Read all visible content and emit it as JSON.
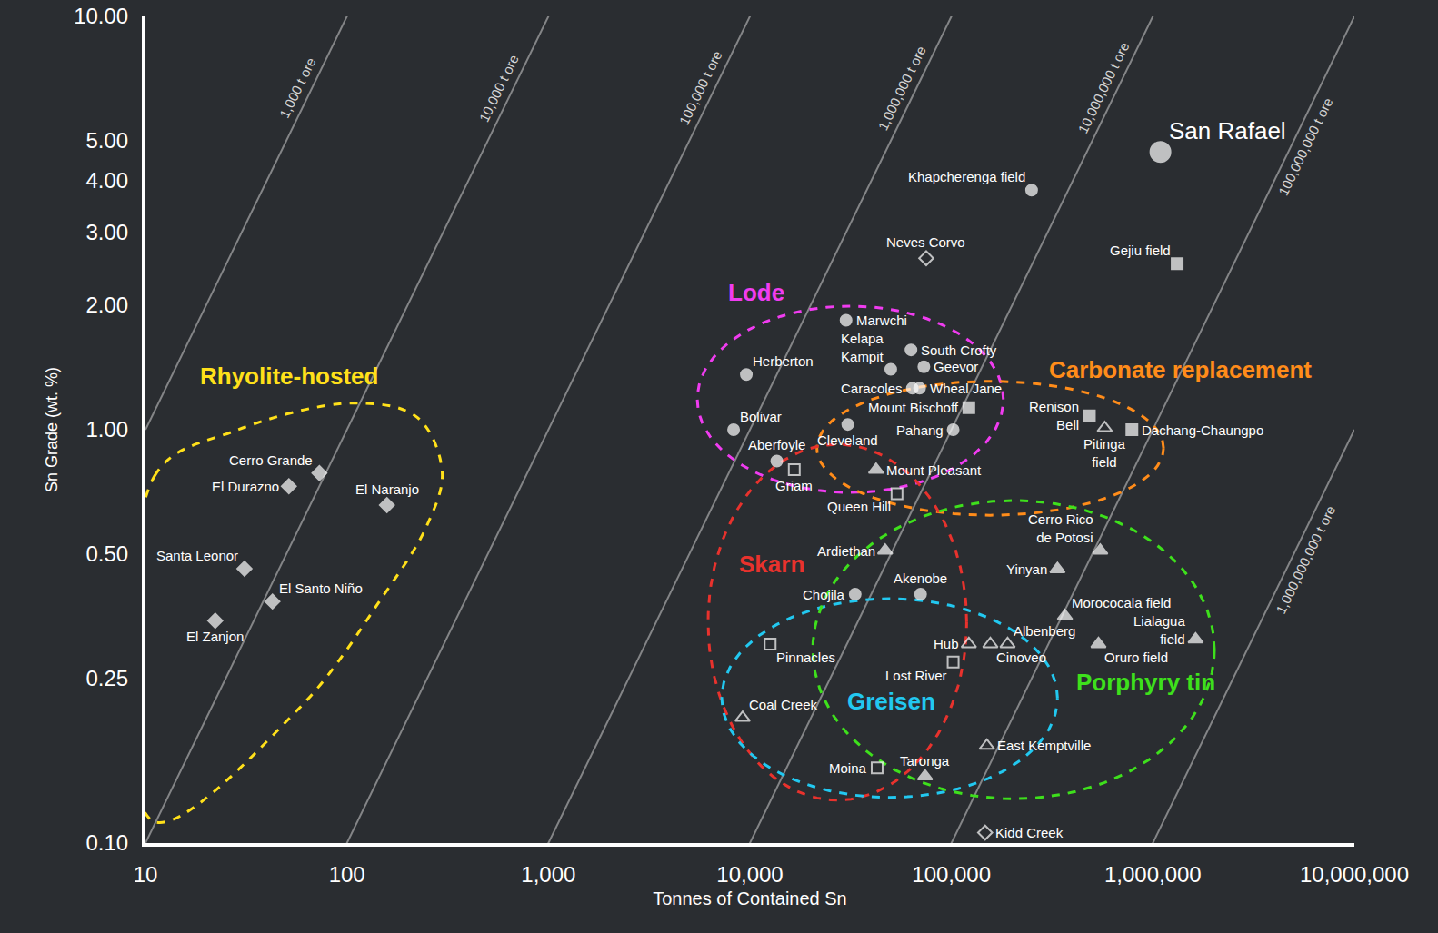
{
  "chart_data": {
    "type": "scatter",
    "xlabel": "Tonnes of Contained Sn",
    "ylabel": "Sn Grade (wt. %)",
    "log": true,
    "grid": false,
    "xlim": [
      10,
      10000000
    ],
    "ylim": [
      0.1,
      10
    ],
    "xticks": [
      10,
      100,
      {
        "value": 1000,
        "label": "1,000"
      },
      {
        "value": 10000,
        "label": "10,000"
      },
      {
        "value": 100000,
        "label": "100,000"
      },
      {
        "value": 1000000,
        "label": "1,000,000"
      },
      {
        "value": 10000000,
        "label": "10,000,000"
      }
    ],
    "yticks": [
      {
        "value": 0.1,
        "label": "0.10"
      },
      0.25,
      {
        "value": 0.5,
        "label": "0.50"
      },
      {
        "value": 1,
        "label": "1.00"
      },
      {
        "value": 2,
        "label": "2.00"
      },
      {
        "value": 3,
        "label": "3.00"
      },
      {
        "value": 4,
        "label": "4.00"
      },
      {
        "value": 5,
        "label": "5.00"
      },
      {
        "value": 10,
        "label": "10.00"
      }
    ],
    "ore_lines": [
      {
        "value": 1000,
        "label": "1,000 t ore"
      },
      {
        "value": 10000,
        "label": "10,000 t ore"
      },
      {
        "value": 100000,
        "label": "100,000 t ore"
      },
      {
        "value": 1000000,
        "label": "1,000,000 t ore"
      },
      {
        "value": 10000000,
        "label": "10,000,000 t ore"
      },
      {
        "value": 100000000,
        "label": "100,000,000 t ore"
      },
      {
        "value": 1000000000,
        "label": "1,000,000,000 t ore"
      }
    ],
    "points": [
      {
        "name": "San Rafael",
        "x": 1090000,
        "y": 4.7,
        "marker": "circle-large"
      },
      {
        "name": "Khapcherenga field",
        "x": 250000,
        "y": 3.8,
        "marker": "circle"
      },
      {
        "name": "Neves Corvo",
        "x": 75000,
        "y": 2.6,
        "marker": "diamond-open"
      },
      {
        "name": "Gejiu field",
        "x": 1320000,
        "y": 2.52,
        "marker": "square"
      },
      {
        "name": "Marwchi",
        "x": 30000,
        "y": 1.84,
        "marker": "circle"
      },
      {
        "name": "South Crofty",
        "x": 63000,
        "y": 1.56,
        "marker": "circle"
      },
      {
        "name": "Kelapa Kampit",
        "x": 50000,
        "y": 1.4,
        "marker": "circle"
      },
      {
        "name": "Geevor",
        "x": 73000,
        "y": 1.42,
        "marker": "circle"
      },
      {
        "name": "Caracoles",
        "x": 64000,
        "y": 1.26,
        "marker": "circle"
      },
      {
        "name": "Wheal Jane",
        "x": 69500,
        "y": 1.26,
        "marker": "circle"
      },
      {
        "name": "Herberton",
        "x": 9600,
        "y": 1.36,
        "marker": "circle"
      },
      {
        "name": "Bolivar",
        "x": 8300,
        "y": 1.0,
        "marker": "circle"
      },
      {
        "name": "Mount Bischoff",
        "x": 122000,
        "y": 1.13,
        "marker": "square"
      },
      {
        "name": "Pahang",
        "x": 102000,
        "y": 1.0,
        "marker": "circle"
      },
      {
        "name": "Cleveland",
        "x": 30600,
        "y": 1.03,
        "marker": "circle"
      },
      {
        "name": "Renison Bell",
        "x": 484000,
        "y": 1.08,
        "marker": "square"
      },
      {
        "name": "Pitinga field",
        "x": 577000,
        "y": 1.01,
        "marker": "triangle-open"
      },
      {
        "name": "Dachang-Chaungpo",
        "x": 787000,
        "y": 1.0,
        "marker": "square"
      },
      {
        "name": "Aberfoyle",
        "x": 13600,
        "y": 0.84,
        "marker": "circle"
      },
      {
        "name": "Griam",
        "x": 16600,
        "y": 0.8,
        "marker": "square-open"
      },
      {
        "name": "Mount Pleasant",
        "x": 42300,
        "y": 0.8,
        "marker": "triangle"
      },
      {
        "name": "Queen Hill",
        "x": 53700,
        "y": 0.7,
        "marker": "square-open"
      },
      {
        "name": "Ardiethan",
        "x": 46900,
        "y": 0.51,
        "marker": "triangle"
      },
      {
        "name": "Cerro Rico de Potosi",
        "x": 548000,
        "y": 0.51,
        "marker": "triangle"
      },
      {
        "name": "Yinyan",
        "x": 336000,
        "y": 0.46,
        "marker": "triangle"
      },
      {
        "name": "Chojila",
        "x": 33300,
        "y": 0.4,
        "marker": "circle"
      },
      {
        "name": "Akenobe",
        "x": 70300,
        "y": 0.4,
        "marker": "circle"
      },
      {
        "name": "Morococala field",
        "x": 366000,
        "y": 0.354,
        "marker": "triangle"
      },
      {
        "name": "Hub",
        "x": 122000,
        "y": 0.303,
        "marker": "triangle-open"
      },
      {
        "name": "Cinoveo",
        "x": 156000,
        "y": 0.303,
        "marker": "triangle-open"
      },
      {
        "name": "Albenberg",
        "x": 190000,
        "y": 0.303,
        "marker": "triangle-open"
      },
      {
        "name": "Lialagua field",
        "x": 1630000,
        "y": 0.311,
        "marker": "triangle"
      },
      {
        "name": "Oruro field",
        "x": 537000,
        "y": 0.303,
        "marker": "triangle"
      },
      {
        "name": "Pinnacles",
        "x": 12600,
        "y": 0.303,
        "marker": "square-open"
      },
      {
        "name": "Lost River",
        "x": 102000,
        "y": 0.274,
        "marker": "square-open"
      },
      {
        "name": "Coal Creek",
        "x": 9200,
        "y": 0.201,
        "marker": "triangle-open"
      },
      {
        "name": "East Kemptville",
        "x": 150000,
        "y": 0.172,
        "marker": "triangle-open"
      },
      {
        "name": "Moina",
        "x": 42800,
        "y": 0.152,
        "marker": "square-open"
      },
      {
        "name": "Taronga",
        "x": 74000,
        "y": 0.145,
        "marker": "triangle"
      },
      {
        "name": "Kidd Creek",
        "x": 147000,
        "y": 0.106,
        "marker": "diamond-open"
      },
      {
        "name": "Cerro Grande",
        "x": 73,
        "y": 0.785,
        "marker": "diamond"
      },
      {
        "name": "El Durazno",
        "x": 51.5,
        "y": 0.73,
        "marker": "diamond"
      },
      {
        "name": "El Naranjo",
        "x": 158,
        "y": 0.657,
        "marker": "diamond"
      },
      {
        "name": "Santa Leonor",
        "x": 31,
        "y": 0.461,
        "marker": "diamond"
      },
      {
        "name": "El Santo Niño",
        "x": 42.7,
        "y": 0.384,
        "marker": "diamond"
      },
      {
        "name": "El Zanjon",
        "x": 22.2,
        "y": 0.345,
        "marker": "diamond"
      }
    ],
    "groups": [
      {
        "name": "Lode",
        "color": "#f03cf0",
        "xlim": [
          5480,
          181000
        ],
        "ylim": [
          0.705,
          1.99
        ],
        "label_at": [
          10800,
          2.15
        ]
      },
      {
        "name": "Carbonate replacement",
        "color": "#ff8c1a",
        "xlim": [
          21500,
          1130000
        ],
        "ylim": [
          0.621,
          1.31
        ],
        "label_at": [
          1370000,
          1.4
        ]
      },
      {
        "name": "Skarn",
        "color": "#e8322d",
        "xlim": [
          6200,
          119000
        ],
        "ylim": [
          0.127,
          0.922
        ],
        "label_at": [
          12800,
          0.473
        ]
      },
      {
        "name": "Greisen",
        "color": "#22c8f0",
        "xlim": [
          7250,
          336000
        ],
        "ylim": [
          0.129,
          0.39
        ],
        "label_at": [
          50500,
          0.22
        ]
      },
      {
        "name": "Porphyry tin",
        "color": "#3ee01c",
        "xlim": [
          20500,
          2020000
        ],
        "ylim": [
          0.128,
          0.674
        ],
        "label_at": [
          920000,
          0.245
        ]
      },
      {
        "name": "Rhyolite-hosted",
        "color": "#ffe01a",
        "outline": [
          [
            10.9,
            0.113
          ],
          [
            11.1,
            0.773
          ],
          [
            28,
            0.995
          ],
          [
            109,
            1.16
          ],
          [
            224,
            1.07
          ],
          [
            297,
            0.792
          ],
          [
            249,
            0.585
          ],
          [
            148,
            0.39
          ],
          [
            58,
            0.212
          ]
        ],
        "label_at": [
          51.5,
          1.35
        ]
      }
    ]
  }
}
